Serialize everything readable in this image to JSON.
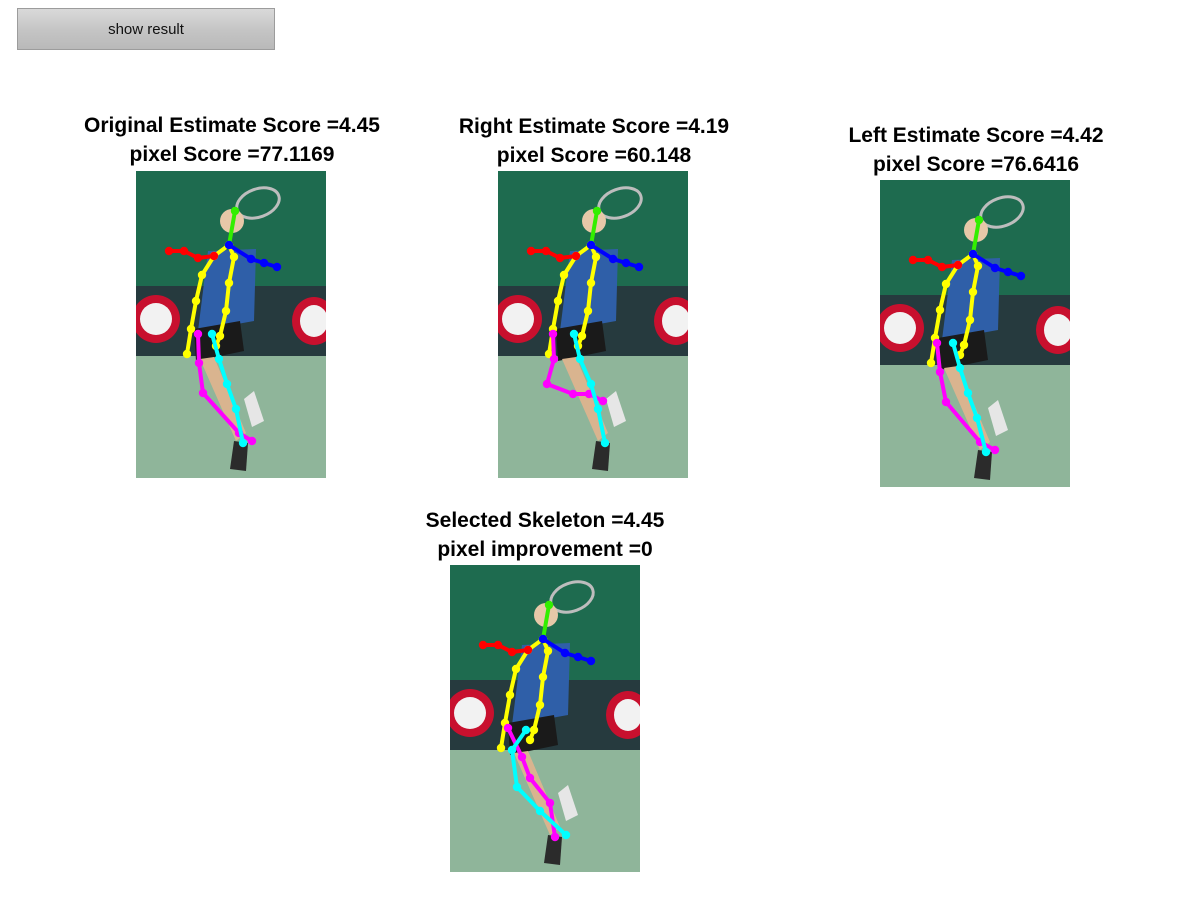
{
  "button": {
    "label": "show result"
  },
  "panels": {
    "original": {
      "title": "Original Estimate Score =4.45",
      "subtitle": "pixel Score =77.1169"
    },
    "right": {
      "title": "Right Estimate Score =4.19",
      "subtitle": "pixel Score =60.148"
    },
    "left": {
      "title": "Left Estimate Score =4.42",
      "subtitle": "pixel Score =76.6416"
    },
    "selected": {
      "title": "Selected Skeleton =4.45",
      "subtitle": "pixel improvement =0"
    }
  },
  "colors": {
    "head": "#33ee00",
    "torso": "#ffff00",
    "right_arm": "#ff0000",
    "left_arm": "#0000ff",
    "right_leg": "#ff00ff",
    "left_leg": "#00ffff",
    "background": "#1e6b4f",
    "court": "#8fb59a"
  }
}
